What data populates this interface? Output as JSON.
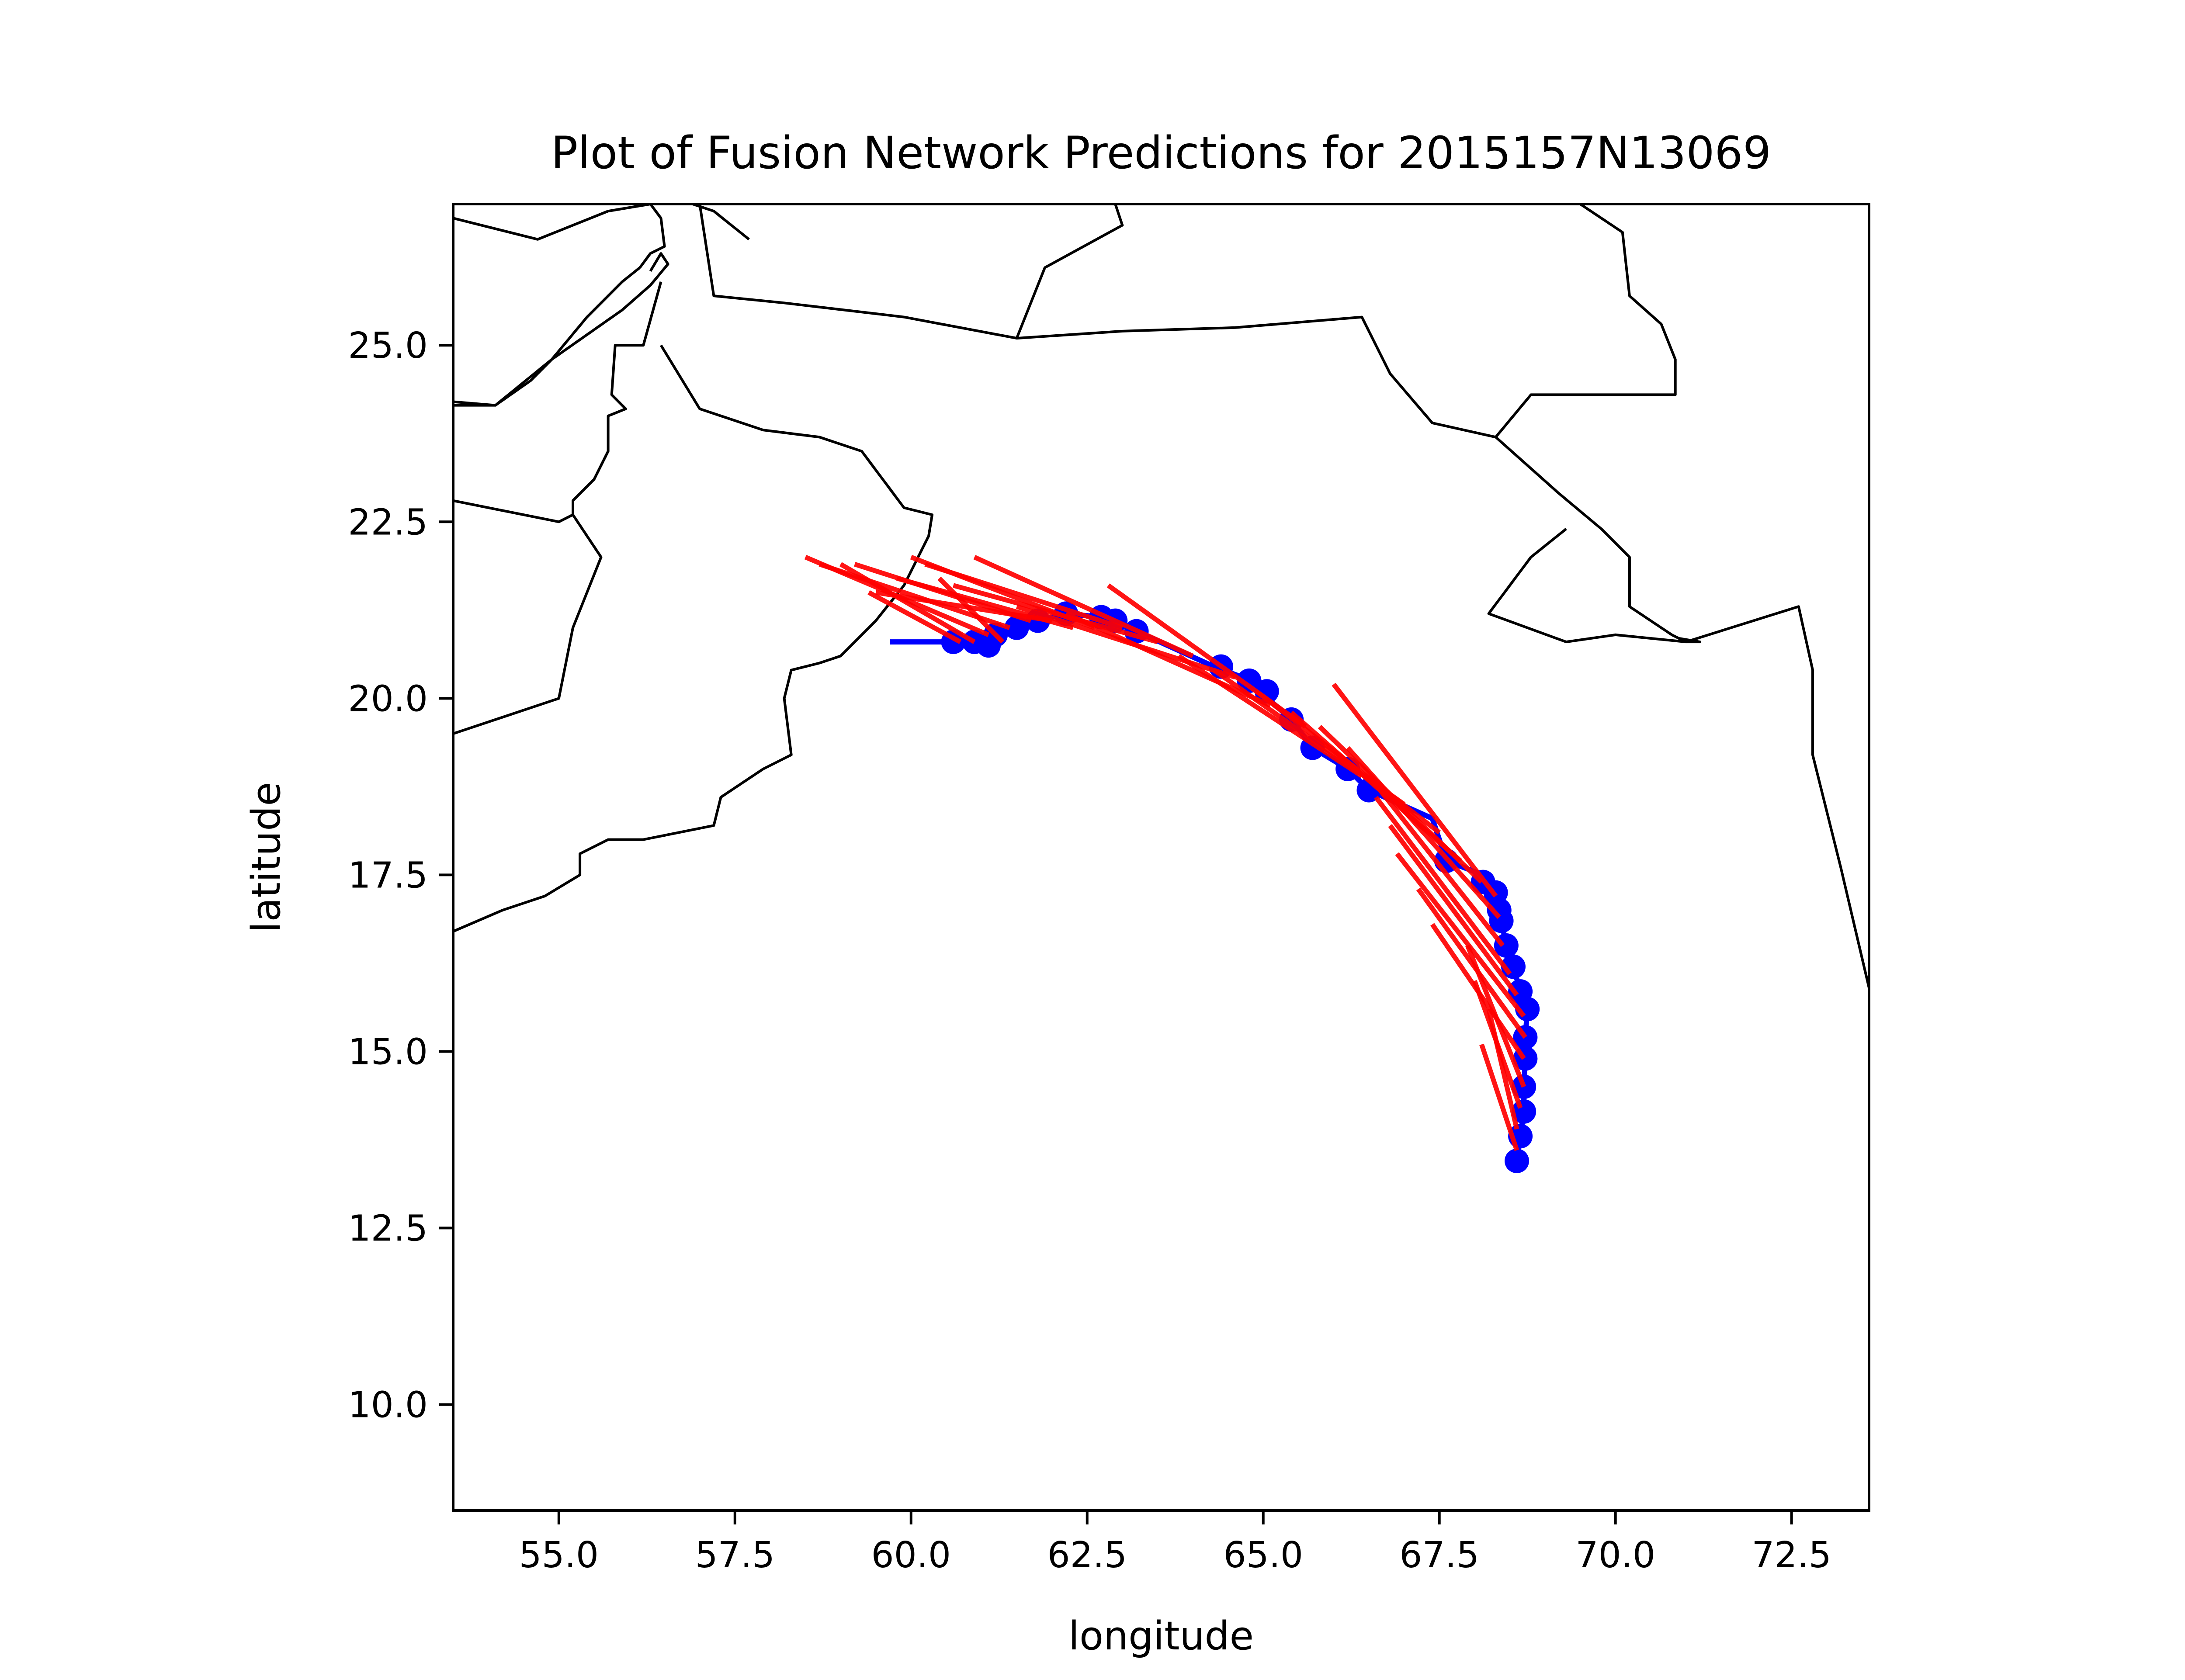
{
  "chart_data": {
    "type": "line",
    "title": "Plot of Fusion Network Predictions for 2015157N13069",
    "xlabel": "longitude",
    "ylabel": "latitude",
    "xlim": [
      53.5,
      73.6
    ],
    "ylim": [
      8.5,
      27.0
    ],
    "xticks": [
      55.0,
      57.5,
      60.0,
      62.5,
      65.0,
      67.5,
      70.0,
      72.5
    ],
    "yticks": [
      10.0,
      12.5,
      15.0,
      17.5,
      20.0,
      22.5,
      25.0
    ],
    "xtick_labels": [
      "55.0",
      "57.5",
      "60.0",
      "62.5",
      "65.0",
      "67.5",
      "70.0",
      "72.5"
    ],
    "ytick_labels": [
      "10.0",
      "12.5",
      "15.0",
      "17.5",
      "20.0",
      "22.5",
      "25.0"
    ],
    "grid": false,
    "colors": {
      "track": "#0000ff",
      "predictions": "#ff0000",
      "coast": "#000000"
    },
    "track": {
      "x": [
        68.6,
        68.65,
        68.7,
        68.7,
        68.72,
        68.72,
        68.75,
        68.65,
        68.55,
        68.45,
        68.38,
        68.35,
        68.3,
        68.12,
        67.6,
        67.4,
        66.5,
        66.2,
        65.7,
        65.4,
        64.95,
        64.7,
        64.3,
        63.2,
        62.9,
        62.7,
        62.2,
        61.8,
        61.45,
        61.2,
        61.1,
        60.9,
        60.6,
        59.7
      ],
      "y": [
        13.45,
        13.8,
        14.15,
        14.5,
        14.9,
        15.2,
        15.6,
        15.85,
        16.2,
        16.5,
        16.85,
        17.0,
        17.25,
        17.5,
        17.7,
        18.3,
        18.7,
        19.0,
        19.3,
        19.7,
        20.1,
        20.3,
        20.45,
        20.95,
        21.1,
        21.15,
        21.2,
        21.1,
        21.0,
        20.9,
        20.75,
        20.8,
        20.8,
        20.8
      ]
    },
    "track_markers": {
      "x": [
        68.6,
        68.65,
        68.7,
        68.7,
        68.72,
        68.72,
        68.75,
        68.65,
        68.55,
        68.45,
        68.38,
        68.35,
        68.3,
        68.12,
        67.6,
        66.5,
        66.2,
        65.7,
        65.4,
        65.05,
        64.8,
        64.4,
        63.2,
        62.9,
        62.7,
        62.2,
        61.8,
        61.5,
        61.2,
        61.1,
        60.9,
        60.6
      ],
      "y": [
        13.45,
        13.8,
        14.15,
        14.5,
        14.9,
        15.2,
        15.6,
        15.85,
        16.2,
        16.5,
        16.85,
        17.0,
        17.25,
        17.4,
        17.7,
        18.7,
        19.0,
        19.3,
        19.7,
        20.1,
        20.25,
        20.45,
        20.95,
        21.1,
        21.15,
        21.2,
        21.1,
        21.0,
        20.9,
        20.75,
        20.8,
        20.8
      ]
    },
    "predictions": [
      {
        "x": [
          68.6,
          68.1
        ],
        "y": [
          13.6,
          15.1
        ]
      },
      {
        "x": [
          68.6,
          68.2
        ],
        "y": [
          13.9,
          15.6
        ]
      },
      {
        "x": [
          68.65,
          68.0
        ],
        "y": [
          14.2,
          16.0
        ]
      },
      {
        "x": [
          68.7,
          67.9
        ],
        "y": [
          14.5,
          16.5
        ]
      },
      {
        "x": [
          68.7,
          67.4
        ],
        "y": [
          14.9,
          16.8
        ]
      },
      {
        "x": [
          68.72,
          67.2
        ],
        "y": [
          15.2,
          17.3
        ]
      },
      {
        "x": [
          68.7,
          66.9
        ],
        "y": [
          15.5,
          17.8
        ]
      },
      {
        "x": [
          68.6,
          66.8
        ],
        "y": [
          15.8,
          18.2
        ]
      },
      {
        "x": [
          68.5,
          66.6
        ],
        "y": [
          16.1,
          18.6
        ]
      },
      {
        "x": [
          68.4,
          66.5
        ],
        "y": [
          16.5,
          18.9
        ]
      },
      {
        "x": [
          68.35,
          66.2
        ],
        "y": [
          16.9,
          19.3
        ]
      },
      {
        "x": [
          68.3,
          66.0
        ],
        "y": [
          17.2,
          20.2
        ]
      },
      {
        "x": [
          68.1,
          65.8
        ],
        "y": [
          17.4,
          19.6
        ]
      },
      {
        "x": [
          67.8,
          65.4
        ],
        "y": [
          17.7,
          19.8
        ]
      },
      {
        "x": [
          67.5,
          64.9
        ],
        "y": [
          18.1,
          20.1
        ]
      },
      {
        "x": [
          67.0,
          64.3
        ],
        "y": [
          18.5,
          20.4
        ]
      },
      {
        "x": [
          66.4,
          63.8
        ],
        "y": [
          18.9,
          20.6
        ]
      },
      {
        "x": [
          65.6,
          62.8
        ],
        "y": [
          19.6,
          21.6
        ]
      },
      {
        "x": [
          65.1,
          62.2
        ],
        "y": [
          19.9,
          21.2
        ]
      },
      {
        "x": [
          64.6,
          61.5
        ],
        "y": [
          20.3,
          21.3
        ]
      },
      {
        "x": [
          64.0,
          60.9
        ],
        "y": [
          20.6,
          22.0
        ]
      },
      {
        "x": [
          63.5,
          60.6
        ],
        "y": [
          20.8,
          21.6
        ]
      },
      {
        "x": [
          63.0,
          60.2
        ],
        "y": [
          21.0,
          21.9
        ]
      },
      {
        "x": [
          62.6,
          60.0
        ],
        "y": [
          21.0,
          22.0
        ]
      },
      {
        "x": [
          62.3,
          59.8
        ],
        "y": [
          21.0,
          21.7
        ]
      },
      {
        "x": [
          62.0,
          59.5
        ],
        "y": [
          21.1,
          21.5
        ]
      },
      {
        "x": [
          61.7,
          59.2
        ],
        "y": [
          21.1,
          21.9
        ]
      },
      {
        "x": [
          61.4,
          58.7
        ],
        "y": [
          21.0,
          21.9
        ]
      },
      {
        "x": [
          61.1,
          58.5
        ],
        "y": [
          20.9,
          22.0
        ]
      },
      {
        "x": [
          60.9,
          59.0
        ],
        "y": [
          20.8,
          21.9
        ]
      },
      {
        "x": [
          60.7,
          59.4
        ],
        "y": [
          20.8,
          21.5
        ]
      },
      {
        "x": [
          61.3,
          60.4
        ],
        "y": [
          20.8,
          21.7
        ]
      }
    ],
    "coastlines": [
      {
        "x": [
          53.5,
          54.7,
          55.7,
          56.3,
          56.9,
          57.2,
          57.7
        ],
        "y": [
          26.8,
          26.5,
          26.9,
          27.0,
          27.0,
          26.9,
          26.5
        ]
      },
      {
        "x": [
          56.3,
          56.45,
          56.5,
          56.3,
          56.15
        ],
        "y": [
          27.0,
          26.8,
          26.4,
          26.3,
          26.1
        ]
      },
      {
        "x": [
          53.5,
          54.1,
          54.9,
          55.9,
          56.3,
          56.55,
          56.45,
          56.3
        ],
        "y": [
          24.2,
          24.15,
          24.8,
          25.5,
          25.85,
          26.15,
          26.3,
          26.05
        ]
      },
      {
        "x": [
          56.15,
          55.9,
          55.4,
          54.9,
          54.6,
          54.1,
          53.5
        ],
        "y": [
          26.1,
          25.9,
          25.4,
          24.8,
          24.5,
          24.15,
          24.15
        ]
      },
      {
        "x": [
          56.45,
          56.2,
          55.8,
          55.75,
          55.95,
          55.7,
          55.7,
          55.5,
          55.2,
          55.2,
          55.6,
          55.2,
          55.0,
          53.5
        ],
        "y": [
          25.9,
          25.0,
          25.0,
          24.3,
          24.1,
          24.0,
          23.5,
          23.1,
          22.8,
          22.6,
          22.0,
          21.0,
          20.0,
          19.5
        ]
      },
      {
        "x": [
          53.5,
          55.0,
          55.2
        ],
        "y": [
          22.8,
          22.5,
          22.6
        ]
      },
      {
        "x": [
          56.45,
          57.0,
          57.9,
          58.7,
          59.3,
          59.9,
          60.3,
          60.25,
          59.9,
          59.5,
          59.0,
          58.7,
          58.3,
          58.2,
          58.3,
          57.9,
          57.3,
          57.2,
          56.2,
          55.7,
          55.3,
          55.3,
          54.8,
          54.2,
          53.5
        ],
        "y": [
          25.0,
          24.1,
          23.8,
          23.7,
          23.5,
          22.7,
          22.6,
          22.3,
          21.6,
          21.1,
          20.6,
          20.5,
          20.4,
          20.0,
          19.2,
          19.0,
          18.6,
          18.2,
          18.0,
          18.0,
          17.8,
          17.5,
          17.2,
          17.0,
          16.7
        ]
      },
      {
        "x": [
          57.0,
          57.2,
          58.2,
          59.9,
          61.5,
          63.0,
          64.6,
          66.4,
          66.8,
          67.4,
          68.3,
          69.2,
          69.8,
          70.2,
          70.2,
          70.8,
          71.0,
          71.2,
          70.9
        ],
        "y": [
          27.0,
          25.7,
          25.6,
          25.4,
          25.1,
          25.2,
          25.25,
          25.4,
          24.6,
          23.9,
          23.7,
          22.9,
          22.4,
          22.0,
          21.3,
          20.9,
          20.8,
          20.8,
          20.85
        ]
      },
      {
        "x": [
          61.5,
          61.9,
          63.0,
          62.9
        ],
        "y": [
          25.1,
          26.1,
          26.7,
          27.0
        ]
      },
      {
        "x": [
          69.5,
          70.1,
          70.2,
          70.65,
          70.85,
          70.85,
          68.8,
          68.3
        ],
        "y": [
          27.0,
          26.6,
          25.7,
          25.3,
          24.8,
          24.3,
          24.3,
          23.7
        ]
      },
      {
        "x": [
          69.3,
          68.8,
          68.2,
          69.3,
          70.0,
          71.0,
          72.6,
          72.8,
          72.8,
          73.2,
          73.6
        ],
        "y": [
          22.4,
          22.0,
          21.2,
          20.8,
          20.9,
          20.8,
          21.3,
          20.4,
          19.2,
          17.6,
          15.9
        ]
      }
    ]
  }
}
